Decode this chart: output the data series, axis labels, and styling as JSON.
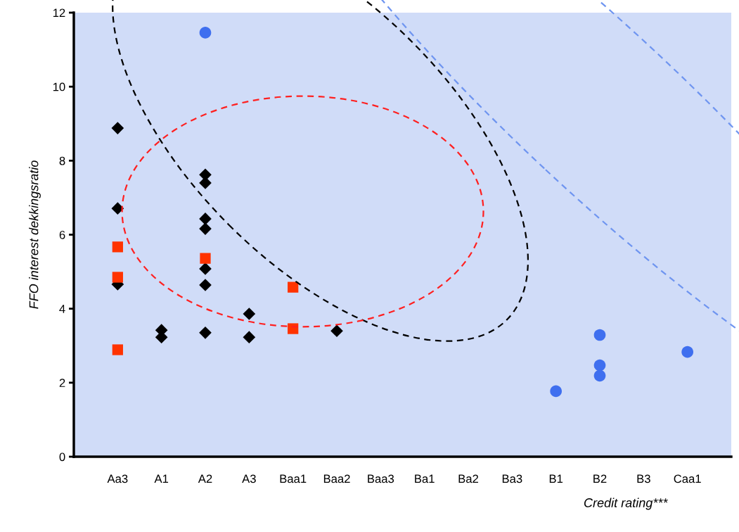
{
  "chart_data": {
    "type": "scatter",
    "ylabel": "FFO interest dekkingsratio",
    "xlabel": "Credit rating***",
    "categories": [
      "Aa3",
      "A1",
      "A2",
      "A3",
      "Baa1",
      "Baa2",
      "Baa3",
      "Ba1",
      "Ba2",
      "Ba3",
      "B1",
      "B2",
      "B3",
      "Caa1"
    ],
    "ylim": [
      0,
      12
    ],
    "yticks": [
      0,
      2,
      4,
      6,
      8,
      10,
      12
    ],
    "grid": false,
    "legend": false,
    "series": [
      {
        "color": "#000000",
        "marker": "diamond",
        "x": [
          "Aa3",
          "Aa3",
          "Aa3",
          "A1",
          "A1",
          "A2",
          "A2",
          "A2",
          "A2",
          "A2",
          "A2",
          "A2",
          "A3",
          "A3",
          "Baa1",
          "Baa2"
        ],
        "values": [
          8.88,
          6.71,
          4.66,
          3.42,
          3.23,
          7.62,
          7.4,
          6.43,
          6.16,
          5.08,
          4.64,
          3.35,
          3.86,
          3.23,
          null,
          3.4
        ]
      },
      {
        "color": "#ff3300",
        "marker": "square",
        "x": [
          "Aa3",
          "Aa3",
          "Aa3",
          "A2",
          "Baa1",
          "Baa1"
        ],
        "values": [
          5.67,
          4.85,
          2.89,
          5.36,
          4.58,
          3.46
        ]
      },
      {
        "color": "#3f6fef",
        "marker": "circle",
        "x": [
          "A2",
          "B1",
          "B2",
          "B2",
          "B2",
          "Caa1"
        ],
        "values": [
          11.46,
          1.77,
          3.29,
          2.47,
          2.19,
          2.83
        ]
      }
    ]
  }
}
